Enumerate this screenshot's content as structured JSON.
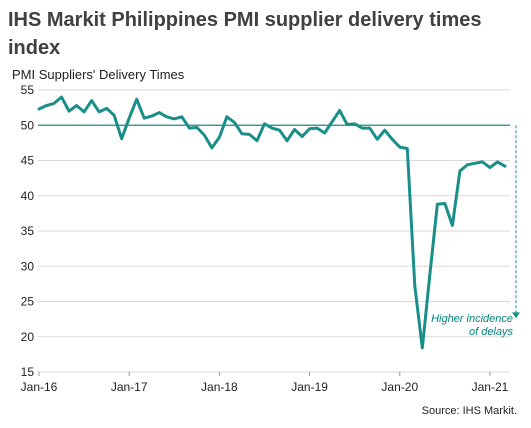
{
  "chart_data": {
    "type": "line",
    "title": "IHS Markit Philippines PMI supplier delivery times index",
    "ylabel": "PMI Suppliers' Delivery Times",
    "source": "Source: IHS Markit.",
    "ylim": [
      15,
      55
    ],
    "yticks": [
      "15",
      "20",
      "25",
      "30",
      "35",
      "40",
      "45",
      "50",
      "55"
    ],
    "xticks": [
      "Jan-16",
      "Jan-17",
      "Jan-18",
      "Jan-19",
      "Jan-20",
      "Jan-21"
    ],
    "reference_line": 50,
    "annotation": [
      "Higher incidence",
      "of delays"
    ],
    "line_color": "#1a8f8a",
    "grid": true,
    "series": [
      {
        "values": [
          52.3,
          52.8,
          53.1,
          54.0,
          52.0,
          52.8,
          51.9,
          53.5,
          51.9,
          52.4,
          51.4,
          48.1,
          51.0,
          53.7,
          51.0,
          51.3,
          51.8,
          51.2,
          50.9,
          51.2,
          49.6,
          49.7,
          48.6,
          46.8,
          48.3,
          51.2,
          50.4,
          48.8,
          48.7,
          47.8,
          50.2,
          49.6,
          49.3,
          47.8,
          49.4,
          48.4,
          49.5,
          49.6,
          48.9,
          50.5,
          52.1,
          50.1,
          50.2,
          49.6,
          49.6,
          48.0,
          49.3,
          48.0,
          46.9,
          46.7,
          27.2,
          18.4,
          28.8,
          38.8,
          38.9,
          35.8,
          43.5,
          44.4,
          44.6,
          44.8,
          44.0,
          44.8,
          44.2
        ]
      }
    ]
  }
}
